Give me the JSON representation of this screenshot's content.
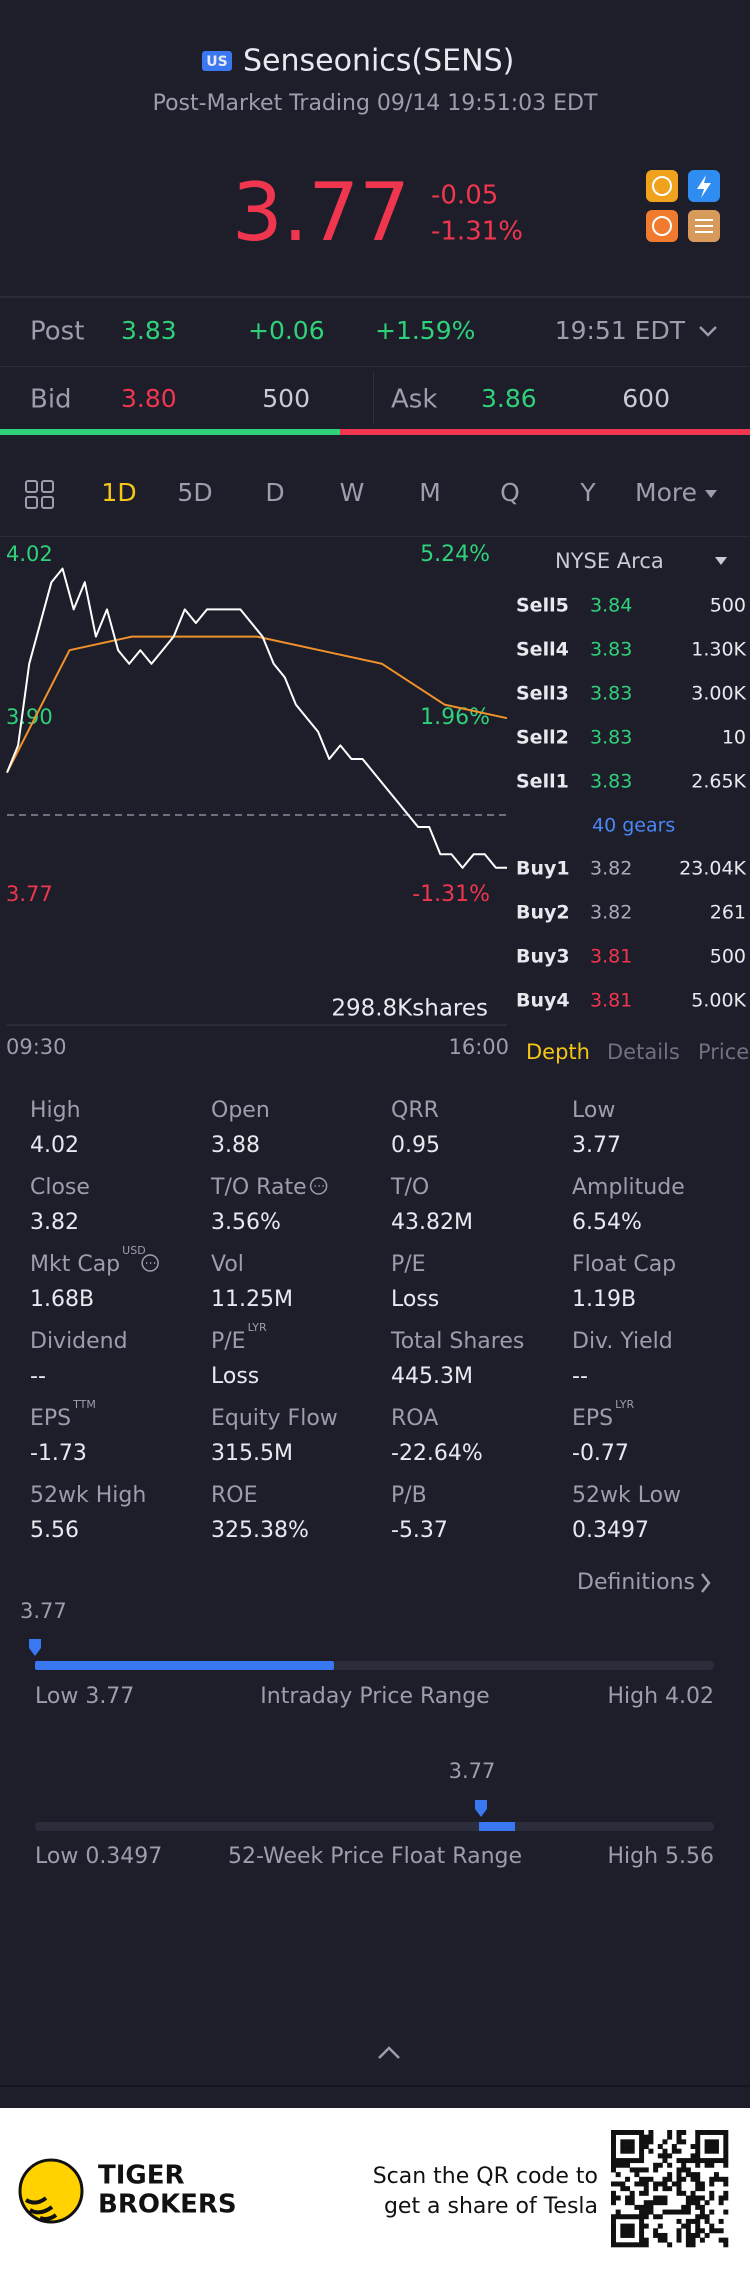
{
  "header": {
    "badge": "US",
    "title": "Senseonics(SENS)",
    "subtitle": "Post-Market Trading 09/14 19:51:03 EDT"
  },
  "quote": {
    "price": "3.77",
    "change": "-0.05",
    "change_pct": "-1.31%"
  },
  "post": {
    "label": "Post",
    "price": "3.83",
    "change": "+0.06",
    "change_pct": "+1.59%",
    "time": "19:51 EDT"
  },
  "bid_ask": {
    "bid_label": "Bid",
    "bid_price": "3.80",
    "bid_size": "500",
    "ask_label": "Ask",
    "ask_price": "3.86",
    "ask_size": "600"
  },
  "tabs": [
    "1D",
    "5D",
    "D",
    "W",
    "M",
    "Q",
    "Y",
    "More"
  ],
  "chart": {
    "price": [
      3.86,
      3.88,
      3.94,
      3.97,
      4.0,
      4.01,
      3.98,
      4.0,
      3.96,
      3.98,
      3.95,
      3.94,
      3.95,
      3.94,
      3.95,
      3.96,
      3.98,
      3.97,
      3.98,
      3.98,
      3.98,
      3.98,
      3.97,
      3.96,
      3.94,
      3.93,
      3.91,
      3.9,
      3.89,
      3.87,
      3.88,
      3.87,
      3.87,
      3.86,
      3.85,
      3.84,
      3.83,
      3.82,
      3.82,
      3.8,
      3.8,
      3.79,
      3.8,
      3.8,
      3.79,
      3.79
    ],
    "avg": [
      3.86,
      3.95,
      3.96,
      3.96,
      3.96,
      3.95,
      3.94,
      3.91,
      3.9
    ],
    "price_color": "#ffffff",
    "avg_color": "#f0922b",
    "ylim": [
      3.77,
      4.02
    ],
    "yticks": [
      4.02,
      {
        "value": 3.9,
        "label": "3.90"
      },
      3.77
    ],
    "pct_labels": [
      "5.24%",
      "1.96%",
      "-1.31%"
    ],
    "volume_label": "298.8Kshares",
    "x_labels": [
      "09:30",
      "16:00"
    ]
  },
  "order_book": {
    "exchange": "NYSE Arca",
    "asks": [
      {
        "label": "Sell5",
        "price": "3.84",
        "size": "500",
        "color": "#2fd17a"
      },
      {
        "label": "Sell4",
        "price": "3.83",
        "size": "1.30K",
        "color": "#2fd17a"
      },
      {
        "label": "Sell3",
        "price": "3.83",
        "size": "3.00K",
        "color": "#2fd17a"
      },
      {
        "label": "Sell2",
        "price": "3.83",
        "size": "10",
        "color": "#2fd17a"
      },
      {
        "label": "Sell1",
        "price": "3.83",
        "size": "2.65K",
        "color": "#2fd17a"
      }
    ],
    "gears": "40 gears",
    "bids": [
      {
        "label": "Buy1",
        "price": "3.82",
        "size": "23.04K",
        "color": "#a9abb8"
      },
      {
        "label": "Buy2",
        "price": "3.82",
        "size": "261",
        "color": "#a9abb8"
      },
      {
        "label": "Buy3",
        "price": "3.81",
        "size": "500",
        "color": "#f0364f"
      },
      {
        "label": "Buy4",
        "price": "3.81",
        "size": "5.00K",
        "color": "#f0364f"
      }
    ]
  },
  "book_tabs": [
    "Depth",
    "Details",
    "Price"
  ],
  "stats": {
    "items": [
      {
        "label": "High",
        "value": "4.02"
      },
      {
        "label": "Open",
        "value": "3.88"
      },
      {
        "label": "QRR",
        "value": "0.95"
      },
      {
        "label": "Low",
        "value": "3.77"
      },
      {
        "label": "Close",
        "value": "3.82"
      },
      {
        "label": "T/O Rate",
        "value": "3.56%"
      },
      {
        "label": "T/O",
        "value": "43.82M"
      },
      {
        "label": "Amplitude",
        "value": "6.54%"
      },
      {
        "label": "Mkt Cap",
        "sup": "USD",
        "value": "1.68B"
      },
      {
        "label": "Vol",
        "value": "11.25M"
      },
      {
        "label": "P/E",
        "value": "Loss"
      },
      {
        "label": "Float Cap",
        "value": "1.19B"
      },
      {
        "label": "Dividend",
        "value": "--"
      },
      {
        "label": "P/E",
        "sup": "LYR",
        "value": "Loss"
      },
      {
        "label": "Total Shares",
        "value": "445.3M"
      },
      {
        "label": "Div. Yield",
        "value": "--"
      },
      {
        "label": "EPS",
        "sup": "TTM",
        "value": "-1.73"
      },
      {
        "label": "Equity Flow",
        "value": "315.5M"
      },
      {
        "label": "ROA",
        "value": "-22.64%"
      },
      {
        "label": "EPS",
        "sup": "LYR",
        "value": "-0.77"
      },
      {
        "label": "52wk High",
        "value": "5.56"
      },
      {
        "label": "ROE",
        "value": "325.38%"
      },
      {
        "label": "P/B",
        "value": "-5.37"
      },
      {
        "label": "52wk Low",
        "value": "0.3497"
      }
    ],
    "definitions": "Definitions"
  },
  "intraday_range": {
    "current": "3.77",
    "low": "Low 3.77",
    "title": "Intraday Price Range",
    "high": "High 4.02"
  },
  "week52_range": {
    "current": "3.77",
    "low": "Low 0.3497",
    "title": "52-Week Price Float Range",
    "high": "High 5.56"
  },
  "footer": {
    "brand": [
      "TIGER",
      "BROKERS"
    ],
    "promo": [
      "Scan the QR code to",
      "get a share of Tesla"
    ]
  }
}
